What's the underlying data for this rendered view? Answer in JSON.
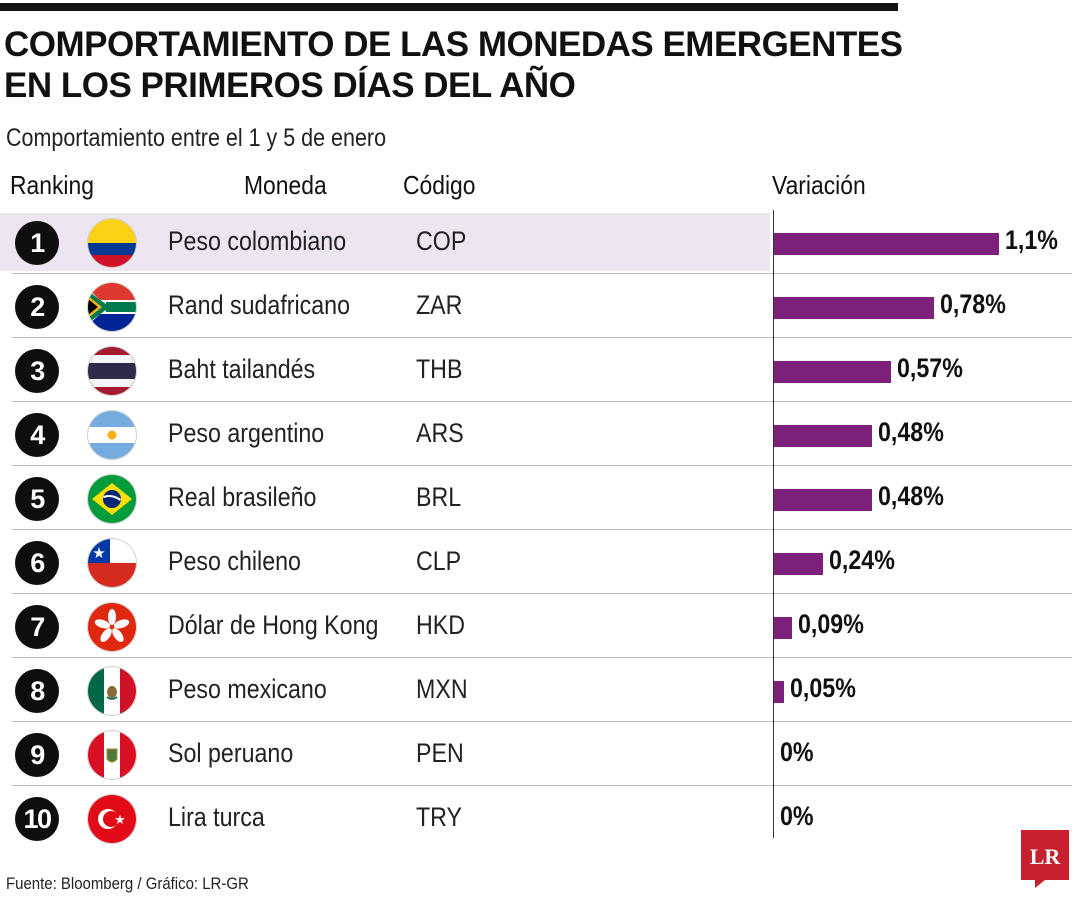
{
  "title_line1": "COMPORTAMIENTO DE LAS MONEDAS EMERGENTES",
  "title_line2": "EN LOS PRIMEROS DÍAS DEL AÑO",
  "subtitle": "Comportamiento entre el 1 y 5 de enero",
  "headers": {
    "ranking": "Ranking",
    "moneda": "Moneda",
    "codigo": "Código",
    "variacion": "Variación"
  },
  "source": "Fuente: Bloomberg / Gráfico: LR-GR",
  "logo_text": "LR",
  "colors": {
    "bar": "#7c2079",
    "highlight": "#ede6f1",
    "logo": "#c8202f"
  },
  "chart_data": {
    "type": "bar",
    "orientation": "horizontal",
    "title": "COMPORTAMIENTO DE LAS MONEDAS EMERGENTES EN LOS PRIMEROS DÍAS DEL AÑO",
    "subtitle": "Comportamiento entre el 1 y 5 de enero",
    "xlabel": "Variación",
    "unit": "%",
    "xlim": [
      0,
      1.1
    ],
    "rows": [
      {
        "rank": "1",
        "currency": "Peso colombiano",
        "code": "COP",
        "flag": "colombia-flag-icon",
        "value": 1.1,
        "label": "1,1%"
      },
      {
        "rank": "2",
        "currency": "Rand sudafricano",
        "code": "ZAR",
        "flag": "south-africa-flag-icon",
        "value": 0.78,
        "label": "0,78%"
      },
      {
        "rank": "3",
        "currency": "Baht tailandés",
        "code": "THB",
        "flag": "thailand-flag-icon",
        "value": 0.57,
        "label": "0,57%"
      },
      {
        "rank": "4",
        "currency": "Peso argentino",
        "code": "ARS",
        "flag": "argentina-flag-icon",
        "value": 0.48,
        "label": "0,48%"
      },
      {
        "rank": "5",
        "currency": "Real brasileño",
        "code": "BRL",
        "flag": "brazil-flag-icon",
        "value": 0.48,
        "label": "0,48%"
      },
      {
        "rank": "6",
        "currency": "Peso chileno",
        "code": "CLP",
        "flag": "chile-flag-icon",
        "value": 0.24,
        "label": "0,24%"
      },
      {
        "rank": "7",
        "currency": "Dólar de Hong Kong",
        "code": "HKD",
        "flag": "hong-kong-flag-icon",
        "value": 0.09,
        "label": "0,09%"
      },
      {
        "rank": "8",
        "currency": "Peso mexicano",
        "code": "MXN",
        "flag": "mexico-flag-icon",
        "value": 0.05,
        "label": "0,05%"
      },
      {
        "rank": "9",
        "currency": "Sol peruano",
        "code": "PEN",
        "flag": "peru-flag-icon",
        "value": 0,
        "label": "0%"
      },
      {
        "rank": "10",
        "currency": "Lira turca",
        "code": "TRY",
        "flag": "turkey-flag-icon",
        "value": 0,
        "label": "0%"
      }
    ]
  }
}
